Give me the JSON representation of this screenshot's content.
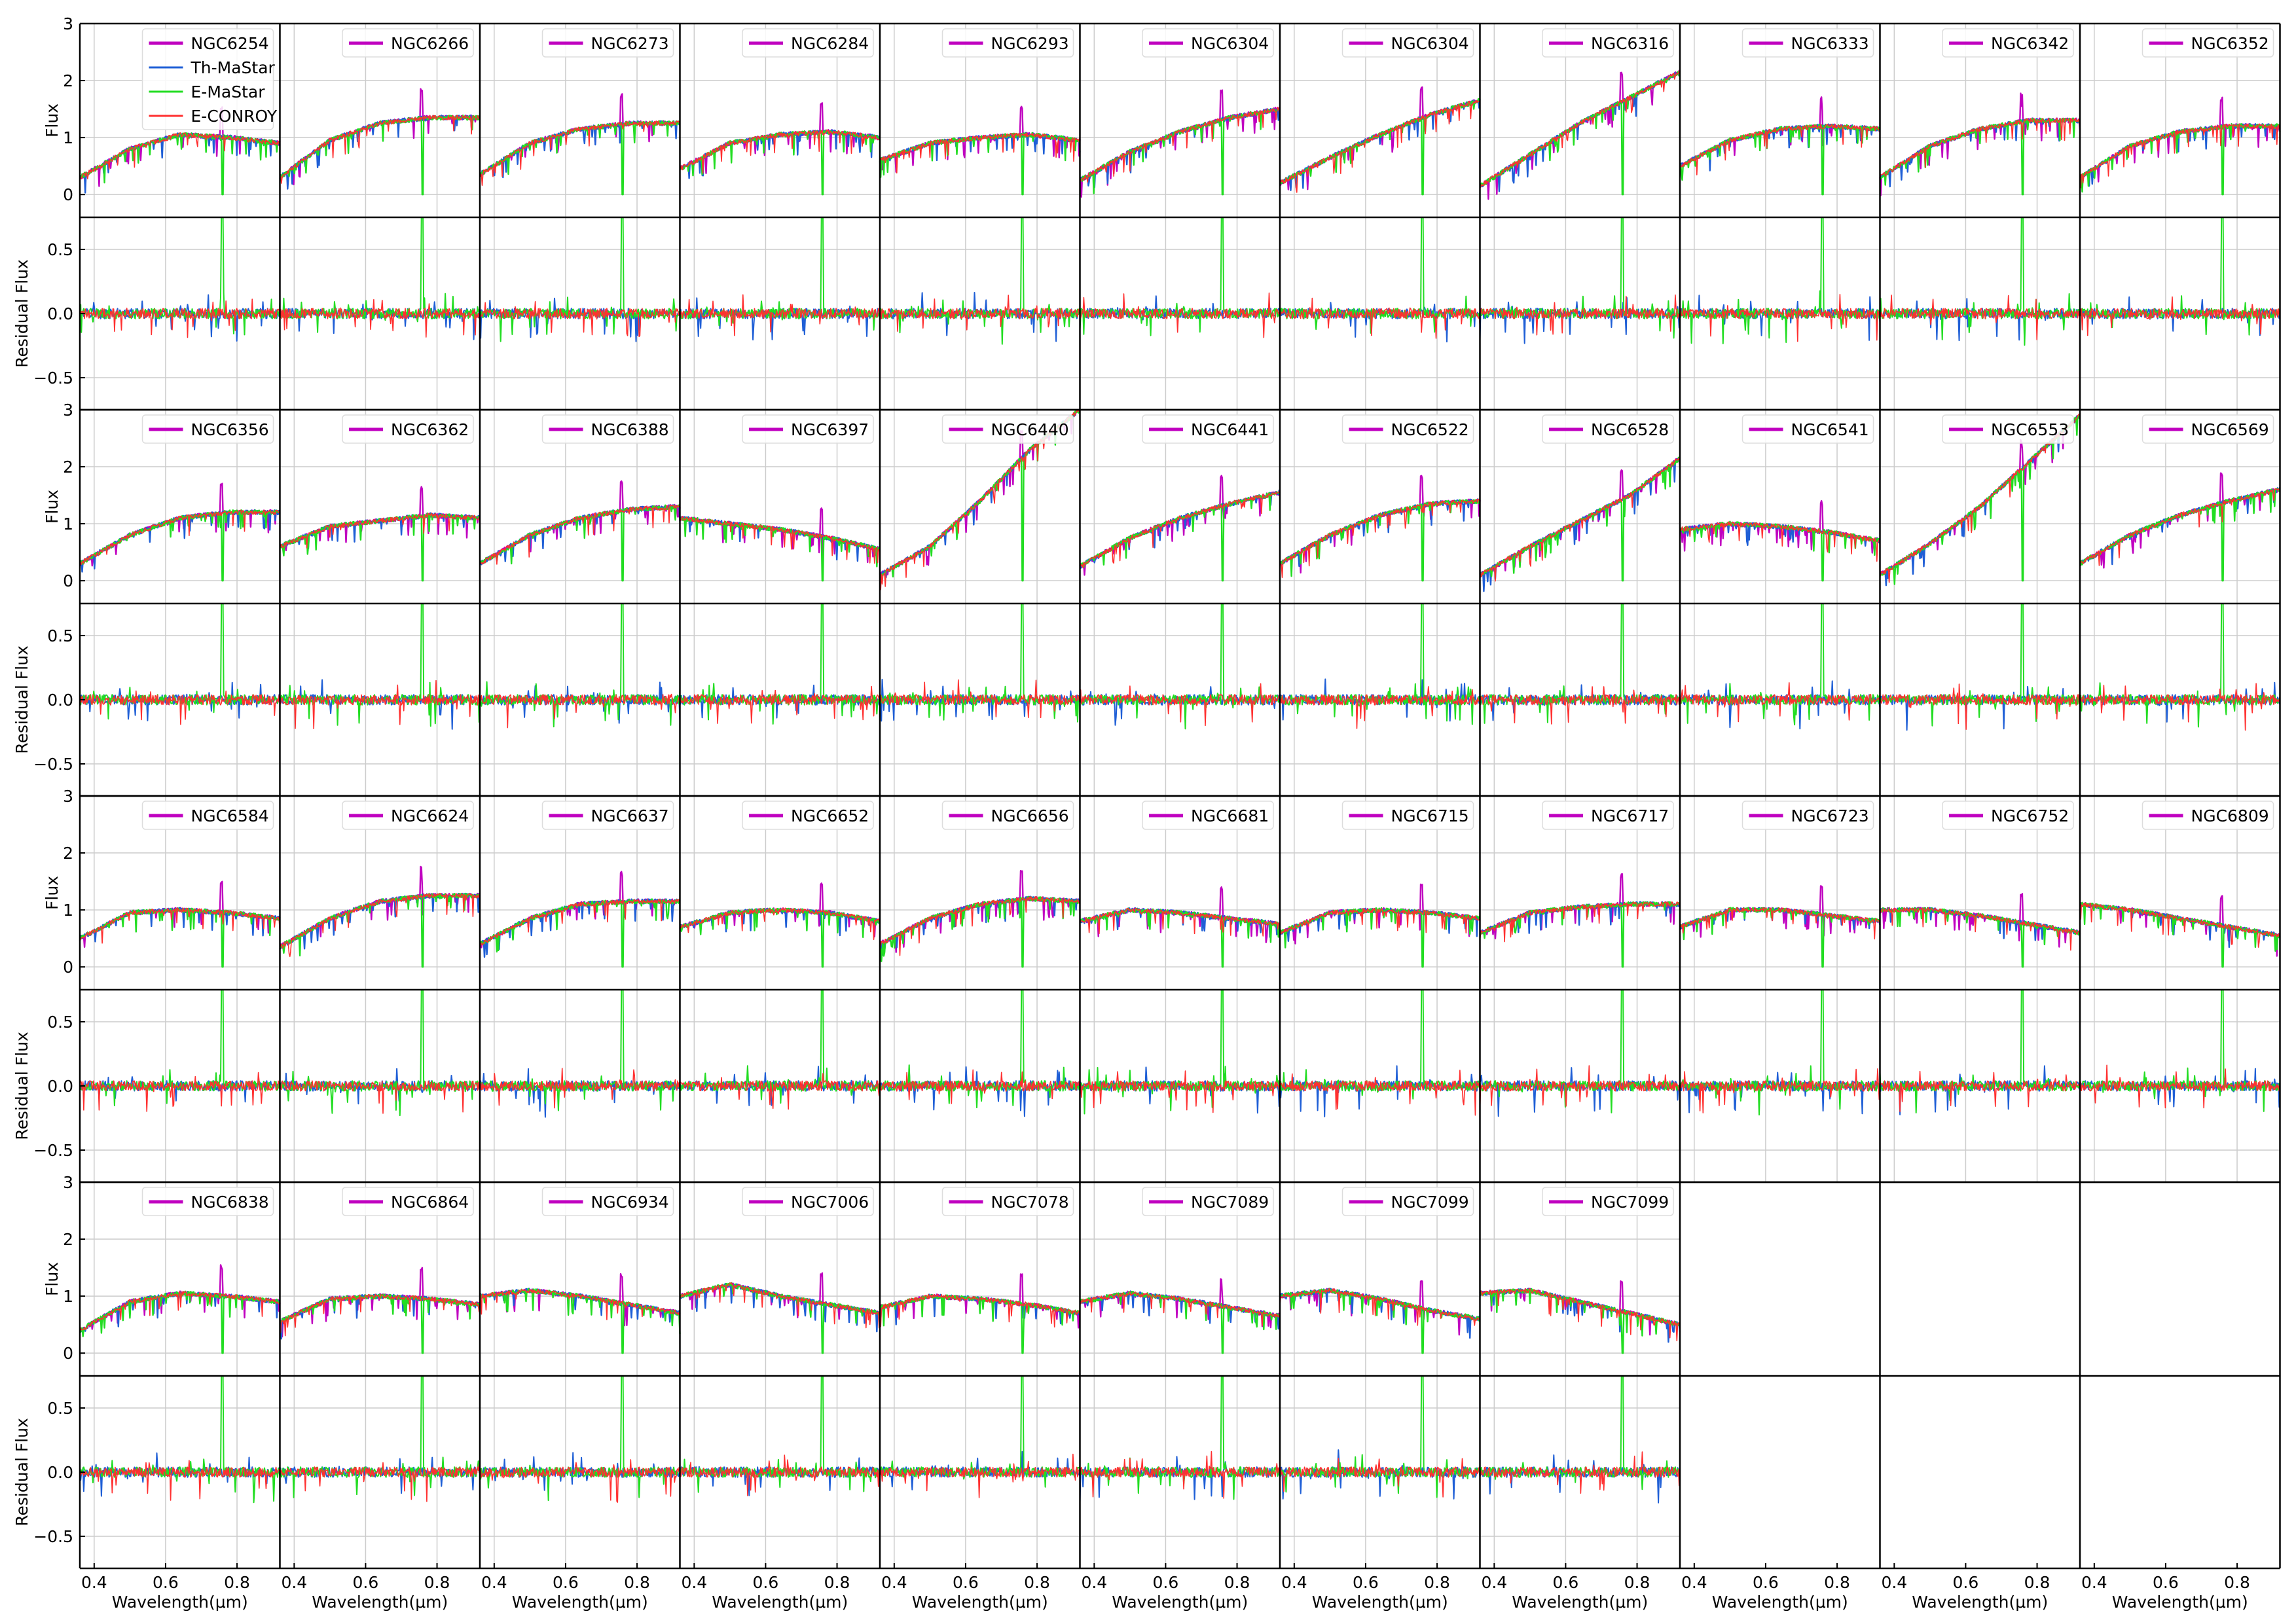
{
  "figure": {
    "legend_entries": [
      {
        "label": "NGC6254",
        "color": "#c000c0"
      },
      {
        "label": "Th-MaStar",
        "color": "#1f5fd6"
      },
      {
        "label": "E-MaStar",
        "color": "#22dd22"
      },
      {
        "label": "E-CONROY",
        "color": "#ff3030"
      }
    ]
  },
  "chart_data": {
    "type": "line",
    "layout": "grid of 4 block-rows x 11 columns; each block has a Flux panel above a Residual Flux panel",
    "xlabel": "Wavelength(μm)",
    "ylabel_flux": "Flux",
    "ylabel_residual": "Residual Flux",
    "xlim": [
      0.36,
      0.92
    ],
    "xticks": [
      "0.4",
      "0.6",
      "0.8"
    ],
    "flux_ylim": [
      -0.4,
      3.0
    ],
    "flux_yticks": [
      "0",
      "1",
      "2",
      "3"
    ],
    "residual_ylim": [
      -0.75,
      0.75
    ],
    "residual_yticks": [
      "−0.5",
      "0.0",
      "0.5"
    ],
    "grid": true,
    "legend_placement": "top of each Flux panel",
    "series": [
      {
        "name": "NGC6254",
        "color": "#c000c0"
      },
      {
        "name": "Th-MaStar",
        "color": "#1f5fd6"
      },
      {
        "name": "E-MaStar",
        "color": "#22dd22"
      },
      {
        "name": "E-CONROY",
        "color": "#ff3030"
      }
    ],
    "panels": [
      {
        "name": "NGC6254",
        "shape": [
          0.3,
          0.8,
          1.05,
          1.0,
          0.9,
          0.0
        ]
      },
      {
        "name": "NGC6266",
        "shape": [
          0.3,
          0.95,
          1.25,
          1.35,
          1.35,
          0.0
        ]
      },
      {
        "name": "NGC6273",
        "shape": [
          0.35,
          0.9,
          1.15,
          1.25,
          1.25,
          0.0
        ]
      },
      {
        "name": "NGC6284",
        "shape": [
          0.45,
          0.9,
          1.05,
          1.1,
          1.0,
          0.0
        ]
      },
      {
        "name": "NGC6293",
        "shape": [
          0.6,
          0.9,
          1.0,
          1.05,
          0.95,
          0.0
        ]
      },
      {
        "name": "NGC6304",
        "shape": [
          0.25,
          0.75,
          1.1,
          1.35,
          1.5,
          0.0
        ]
      },
      {
        "name": "NGC6304",
        "shape": [
          0.2,
          0.65,
          1.05,
          1.4,
          1.65,
          0.0
        ]
      },
      {
        "name": "NGC6316",
        "shape": [
          0.15,
          0.7,
          1.25,
          1.7,
          2.15,
          0.0
        ]
      },
      {
        "name": "NGC6333",
        "shape": [
          0.5,
          0.95,
          1.15,
          1.2,
          1.15,
          0.0
        ]
      },
      {
        "name": "NGC6342",
        "shape": [
          0.3,
          0.85,
          1.15,
          1.3,
          1.3,
          0.0
        ]
      },
      {
        "name": "NGC6352",
        "shape": [
          0.3,
          0.85,
          1.1,
          1.2,
          1.2,
          0.0
        ]
      },
      {
        "name": "NGC6356",
        "shape": [
          0.3,
          0.8,
          1.1,
          1.2,
          1.2,
          0.0
        ]
      },
      {
        "name": "NGC6362",
        "shape": [
          0.6,
          0.95,
          1.05,
          1.15,
          1.1,
          0.0
        ]
      },
      {
        "name": "NGC6388",
        "shape": [
          0.3,
          0.8,
          1.1,
          1.25,
          1.3,
          0.0
        ]
      },
      {
        "name": "NGC6397",
        "shape": [
          1.1,
          1.0,
          0.9,
          0.75,
          0.55,
          0.0
        ]
      },
      {
        "name": "NGC6440",
        "shape": [
          0.1,
          0.6,
          1.4,
          2.3,
          3.0,
          0.0
        ]
      },
      {
        "name": "NGC6441",
        "shape": [
          0.25,
          0.75,
          1.1,
          1.35,
          1.55,
          0.0
        ]
      },
      {
        "name": "NGC6522",
        "shape": [
          0.3,
          0.8,
          1.15,
          1.35,
          1.4,
          0.0
        ]
      },
      {
        "name": "NGC6528",
        "shape": [
          0.1,
          0.6,
          1.05,
          1.5,
          2.15,
          0.0
        ]
      },
      {
        "name": "NGC6541",
        "shape": [
          0.9,
          1.0,
          0.95,
          0.85,
          0.7,
          0.0
        ]
      },
      {
        "name": "NGC6553",
        "shape": [
          0.1,
          0.65,
          1.3,
          2.1,
          2.9,
          0.0
        ]
      },
      {
        "name": "NGC6569",
        "shape": [
          0.3,
          0.8,
          1.15,
          1.4,
          1.6,
          0.0
        ]
      },
      {
        "name": "NGC6584",
        "shape": [
          0.5,
          0.95,
          1.0,
          0.95,
          0.85,
          0.0
        ]
      },
      {
        "name": "NGC6624",
        "shape": [
          0.35,
          0.85,
          1.15,
          1.25,
          1.25,
          0.0
        ]
      },
      {
        "name": "NGC6637",
        "shape": [
          0.4,
          0.85,
          1.1,
          1.15,
          1.15,
          0.0
        ]
      },
      {
        "name": "NGC6652",
        "shape": [
          0.7,
          0.95,
          1.0,
          0.95,
          0.8,
          0.0
        ]
      },
      {
        "name": "NGC6656",
        "shape": [
          0.4,
          0.85,
          1.1,
          1.2,
          1.15,
          0.0
        ]
      },
      {
        "name": "NGC6681",
        "shape": [
          0.8,
          1.0,
          0.95,
          0.85,
          0.75,
          0.0
        ]
      },
      {
        "name": "NGC6715",
        "shape": [
          0.6,
          0.95,
          1.0,
          0.95,
          0.85,
          0.0
        ]
      },
      {
        "name": "NGC6717",
        "shape": [
          0.6,
          0.95,
          1.05,
          1.1,
          1.1,
          0.0
        ]
      },
      {
        "name": "NGC6723",
        "shape": [
          0.7,
          1.0,
          1.0,
          0.9,
          0.8,
          0.0
        ]
      },
      {
        "name": "NGC6752",
        "shape": [
          1.0,
          1.0,
          0.9,
          0.75,
          0.6,
          0.0
        ]
      },
      {
        "name": "NGC6809",
        "shape": [
          1.1,
          1.0,
          0.85,
          0.7,
          0.55,
          0.0
        ]
      },
      {
        "name": "NGC6838",
        "shape": [
          0.4,
          0.9,
          1.05,
          1.0,
          0.9,
          0.0
        ]
      },
      {
        "name": "NGC6864",
        "shape": [
          0.55,
          0.95,
          1.0,
          0.95,
          0.85,
          0.0
        ]
      },
      {
        "name": "NGC6934",
        "shape": [
          1.0,
          1.1,
          1.0,
          0.85,
          0.7,
          0.0
        ]
      },
      {
        "name": "NGC7006",
        "shape": [
          1.0,
          1.2,
          1.0,
          0.85,
          0.7,
          0.0
        ]
      },
      {
        "name": "NGC7078",
        "shape": [
          0.8,
          1.0,
          0.95,
          0.85,
          0.7,
          0.0
        ]
      },
      {
        "name": "NGC7089",
        "shape": [
          0.9,
          1.05,
          0.95,
          0.8,
          0.65,
          0.0
        ]
      },
      {
        "name": "NGC7099",
        "shape": [
          1.0,
          1.1,
          0.95,
          0.75,
          0.6,
          0.0
        ]
      },
      {
        "name": "NGC7099",
        "shape": [
          1.05,
          1.1,
          0.9,
          0.7,
          0.5,
          0.0
        ]
      }
    ]
  }
}
